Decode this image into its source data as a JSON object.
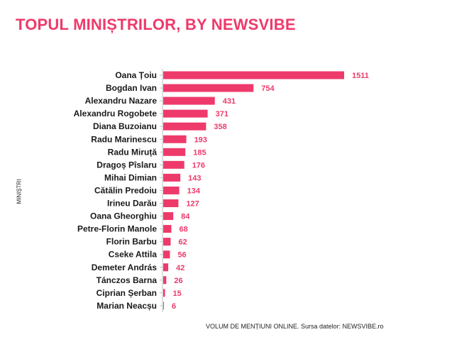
{
  "title": "TOPUL MINIȘTRILOR, BY NEWSVIBE",
  "colors": {
    "accent": "#ee3a6b",
    "text": "#1a1a1a"
  },
  "chart_data": {
    "type": "bar",
    "orientation": "horizontal",
    "title": "TOPUL MINIȘTRILOR, BY NEWSVIBE",
    "ylabel": "MINIȘTRI",
    "xlabel": "VOLUM DE MENȚIUNI ONLINE. Sursa datelor: NEWSVIBE.ro",
    "grid": false,
    "categories": [
      "Oana Țoiu",
      "Bogdan Ivan",
      "Alexandru Nazare",
      "Alexandru Rogobete",
      "Diana Buzoianu",
      "Radu Marinescu",
      "Radu Miruță",
      "Dragoș Pîslaru",
      "Mihai Dimian",
      "Cătălin Predoiu",
      "Irineu Darău",
      "Oana Gheorghiu",
      "Petre-Florin Manole",
      "Florin Barbu",
      "Cseke Attila",
      "Demeter András",
      "Tánczos Barna",
      "Ciprian Șerban",
      "Marian Neacșu"
    ],
    "values": [
      1511,
      754,
      431,
      371,
      358,
      193,
      185,
      176,
      143,
      134,
      127,
      84,
      68,
      62,
      56,
      42,
      26,
      15,
      6
    ],
    "xlim": [
      0,
      1600
    ]
  }
}
